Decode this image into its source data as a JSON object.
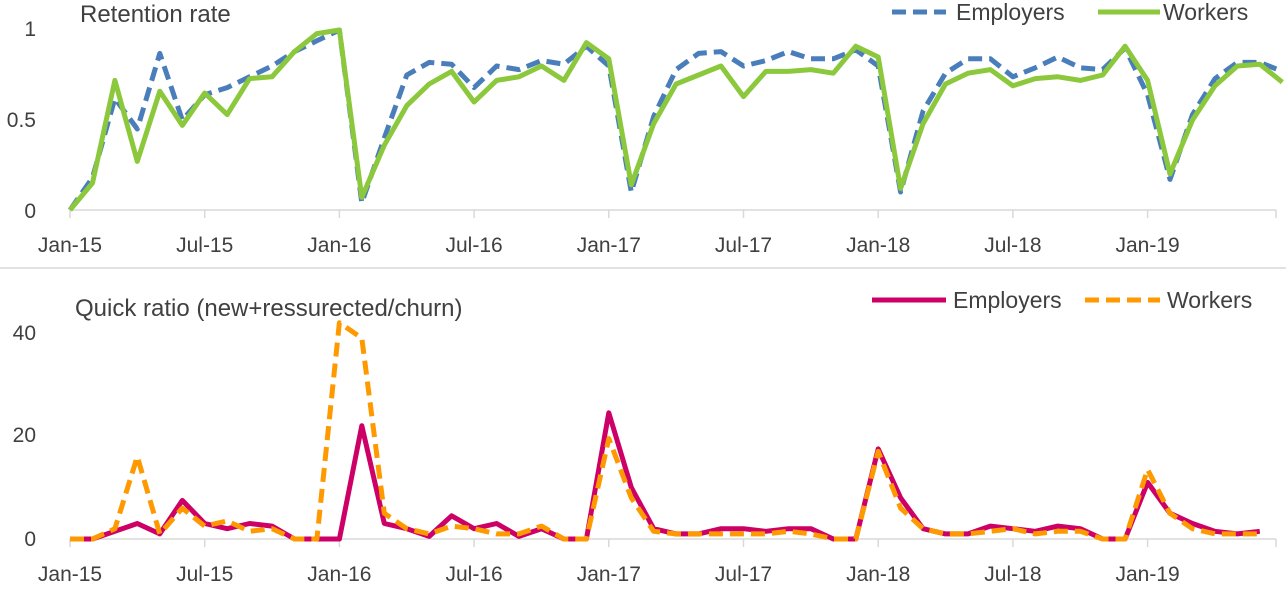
{
  "chart_data": [
    {
      "type": "line",
      "title": "Retention rate",
      "x_ticks": [
        "Jan-15",
        "Jul-15",
        "Jan-16",
        "Jul-16",
        "Jan-17",
        "Jul-17",
        "Jan-18",
        "Jul-18",
        "Jan-19"
      ],
      "x_start": "Jan-15",
      "x_end": "Jun-19",
      "ylim": [
        0,
        1
      ],
      "y_ticks": [
        "0",
        "0.5",
        "1"
      ],
      "legend_position": "top-right",
      "series": [
        {
          "name": "Employers",
          "color": "#4a7ebb",
          "dash": "dashed",
          "values": [
            0.0,
            0.18,
            0.62,
            0.45,
            0.87,
            0.5,
            0.64,
            0.68,
            0.74,
            0.8,
            0.88,
            0.94,
            1.0,
            0.04,
            0.4,
            0.75,
            0.82,
            0.81,
            0.68,
            0.8,
            0.78,
            0.83,
            0.81,
            0.91,
            0.8,
            0.1,
            0.52,
            0.78,
            0.87,
            0.88,
            0.8,
            0.83,
            0.88,
            0.84,
            0.84,
            0.89,
            0.8,
            0.1,
            0.55,
            0.76,
            0.84,
            0.84,
            0.74,
            0.79,
            0.85,
            0.79,
            0.78,
            0.9,
            0.64,
            0.17,
            0.53,
            0.73,
            0.82,
            0.82,
            0.77
          ]
        },
        {
          "name": "Workers",
          "color": "#8cc83c",
          "dash": "solid",
          "values": [
            0.0,
            0.15,
            0.72,
            0.27,
            0.66,
            0.47,
            0.65,
            0.53,
            0.73,
            0.74,
            0.88,
            0.98,
            1.0,
            0.07,
            0.36,
            0.58,
            0.7,
            0.77,
            0.6,
            0.72,
            0.74,
            0.8,
            0.72,
            0.93,
            0.84,
            0.14,
            0.48,
            0.7,
            0.75,
            0.8,
            0.63,
            0.77,
            0.77,
            0.78,
            0.76,
            0.91,
            0.85,
            0.12,
            0.48,
            0.7,
            0.76,
            0.78,
            0.69,
            0.73,
            0.74,
            0.72,
            0.75,
            0.91,
            0.72,
            0.2,
            0.5,
            0.69,
            0.8,
            0.81,
            0.71
          ]
        }
      ]
    },
    {
      "type": "line",
      "title": "Quick ratio (new+ressurected/churn)",
      "x_ticks": [
        "Jan-15",
        "Jul-15",
        "Jan-16",
        "Jul-16",
        "Jan-17",
        "Jul-17",
        "Jan-18",
        "Jul-18",
        "Jan-19"
      ],
      "x_start": "Jan-15",
      "x_end": "Jun-19",
      "ylim": [
        0,
        40
      ],
      "y_ticks": [
        "0",
        "20",
        "40"
      ],
      "legend_position": "top-right",
      "series": [
        {
          "name": "Employers",
          "color": "#cc0066",
          "dash": "solid",
          "values": [
            0,
            0,
            1.5,
            3,
            1,
            7.5,
            3,
            2,
            3,
            2.5,
            0,
            0,
            0,
            22,
            3,
            2,
            0.5,
            4.5,
            2,
            3,
            0.5,
            2,
            0,
            0,
            24.5,
            10,
            2,
            1,
            1,
            2,
            2,
            1.5,
            2,
            2,
            0,
            0,
            17.5,
            8,
            2,
            1,
            1,
            2.5,
            2,
            1.5,
            2.5,
            2,
            0,
            0,
            11,
            5,
            3,
            1.5,
            1,
            1.5
          ]
        },
        {
          "name": "Workers",
          "color": "#ff9900",
          "dash": "dashed",
          "values": [
            0,
            0,
            2,
            16,
            1,
            6,
            2.5,
            3.5,
            1.5,
            2,
            0,
            0,
            42,
            39,
            5,
            2,
            1,
            2.5,
            2,
            1,
            1,
            2.5,
            0,
            0,
            19.5,
            8,
            1.5,
            1,
            1,
            1,
            1,
            1,
            1.5,
            1,
            0,
            0,
            17,
            6,
            2,
            1,
            1,
            1.5,
            2,
            1,
            1.5,
            1.5,
            0,
            0,
            13.5,
            5,
            2,
            1,
            1,
            1
          ]
        }
      ]
    }
  ]
}
